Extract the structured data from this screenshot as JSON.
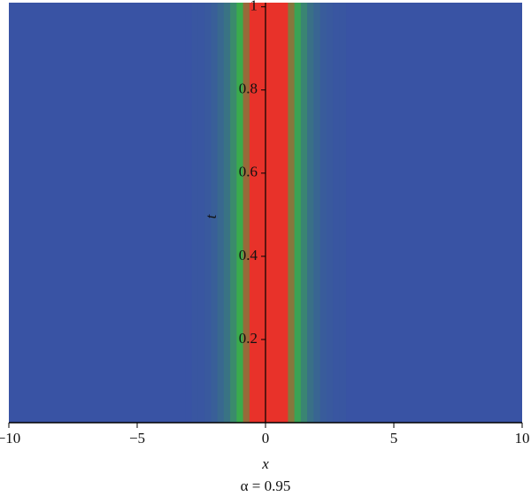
{
  "chart_data": {
    "type": "density",
    "x_label": "x",
    "y_label": "t",
    "caption": "α = 0.95",
    "xlim": [
      -10,
      10
    ],
    "ylim": [
      0,
      1.01
    ],
    "xticks": [
      {
        "value": -10,
        "label": "−10"
      },
      {
        "value": -5,
        "label": "−5"
      },
      0,
      5,
      10
    ],
    "yticks": [
      0.2,
      0.4,
      0.6,
      0.8,
      1
    ],
    "colormap": [
      "#3953a4",
      "#3aab4c",
      "#e8322a"
    ],
    "x": [
      -3,
      -2.75,
      -2.5,
      -2.25,
      -2,
      -1.75,
      -1.5,
      -1.25,
      -1,
      -0.75,
      -0.5,
      -0.25,
      0,
      0.25,
      0.5,
      0.75,
      1,
      1.25,
      1.5,
      1.75,
      2,
      2.25,
      2.5,
      2.75,
      3
    ],
    "values": [
      0,
      0.01,
      0.01,
      0.02,
      0.04,
      0.07,
      0.11,
      0.19,
      0.3,
      0.46,
      0.66,
      0.87,
      0.99,
      0.97,
      0.83,
      0.62,
      0.43,
      0.27,
      0.17,
      0.1,
      0.06,
      0.03,
      0.02,
      0.01,
      0.01
    ]
  }
}
